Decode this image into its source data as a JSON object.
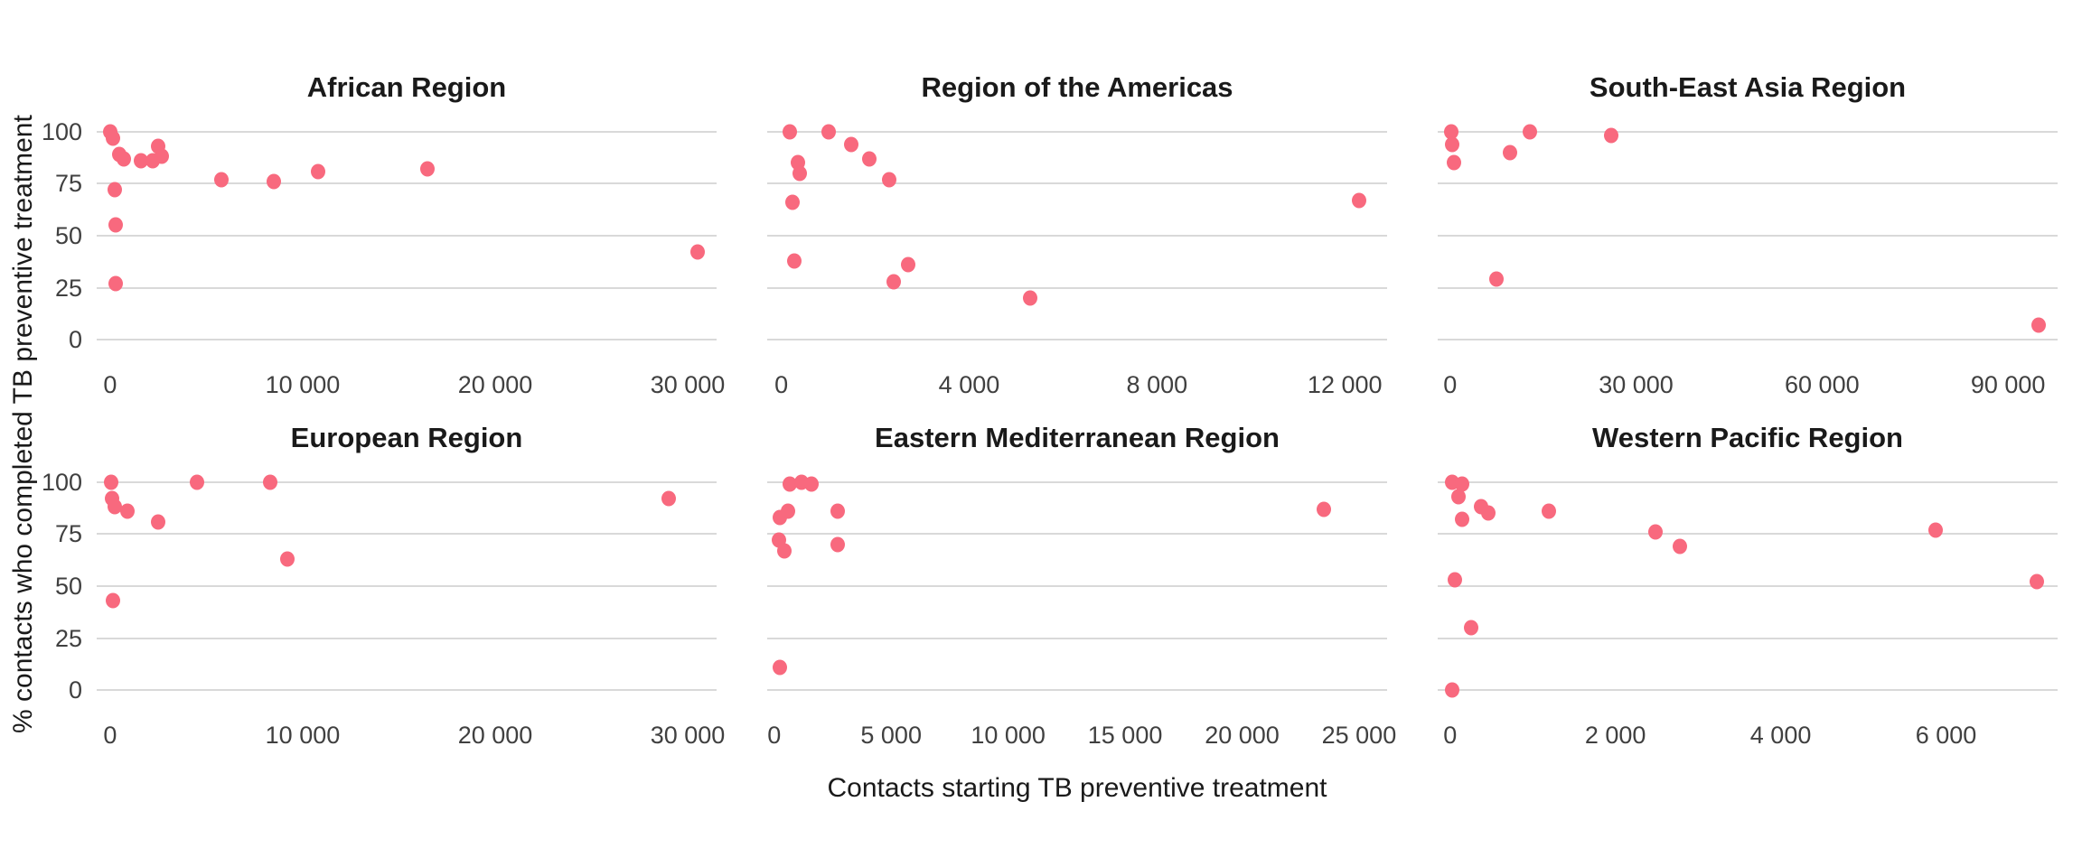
{
  "chart_data": {
    "type": "scatter",
    "title": "",
    "xlabel": "Contacts starting TB preventive treatment",
    "ylabel": "% contacts who completed TB preventive treatment",
    "point_color": "#f8697e",
    "gridline_color": "#d9d9d9",
    "grid": "horizontal-only",
    "legend_position": "none",
    "y_axis": {
      "tick_values": [
        100,
        75,
        50,
        25,
        0
      ],
      "tick_labels": [
        "100",
        "75",
        "50",
        "25",
        "0"
      ],
      "domain": [
        -9,
        109
      ]
    },
    "panels": [
      {
        "title": "African Region",
        "x_domain": [
          -700,
          31500
        ],
        "x_tick_values": [
          0,
          10000,
          20000,
          30000
        ],
        "x_tick_labels": [
          "0",
          "10 000",
          "20 000",
          "30 000"
        ],
        "points": [
          [
            0,
            100
          ],
          [
            150,
            97
          ],
          [
            450,
            89
          ],
          [
            700,
            87
          ],
          [
            1600,
            86
          ],
          [
            2200,
            86
          ],
          [
            2500,
            93
          ],
          [
            2700,
            88
          ],
          [
            250,
            72
          ],
          [
            300,
            55
          ],
          [
            300,
            27
          ],
          [
            5800,
            77
          ],
          [
            8500,
            76
          ],
          [
            10800,
            81
          ],
          [
            16500,
            82
          ],
          [
            30500,
            42
          ]
        ]
      },
      {
        "title": "Region of the Americas",
        "x_domain": [
          -300,
          12900
        ],
        "x_tick_values": [
          0,
          4000,
          8000,
          12000
        ],
        "x_tick_labels": [
          "0",
          "4 000",
          "8 000",
          "12 000"
        ],
        "points": [
          [
            180,
            100
          ],
          [
            1000,
            100
          ],
          [
            1480,
            94
          ],
          [
            1880,
            87
          ],
          [
            2300,
            77
          ],
          [
            350,
            85
          ],
          [
            400,
            80
          ],
          [
            240,
            66
          ],
          [
            280,
            38
          ],
          [
            2400,
            28
          ],
          [
            2700,
            36
          ],
          [
            5300,
            20
          ],
          [
            12300,
            67
          ]
        ]
      },
      {
        "title": "South-East Asia Region",
        "x_domain": [
          -2000,
          98000
        ],
        "x_tick_values": [
          0,
          30000,
          60000,
          90000
        ],
        "x_tick_labels": [
          "0",
          "30 000",
          "60 000",
          "90 000"
        ],
        "points": [
          [
            150,
            100
          ],
          [
            350,
            94
          ],
          [
            600,
            85
          ],
          [
            9700,
            90
          ],
          [
            12900,
            100
          ],
          [
            26000,
            98
          ],
          [
            7500,
            29
          ],
          [
            95000,
            7
          ]
        ]
      },
      {
        "title": "European Region",
        "x_domain": [
          -700,
          31500
        ],
        "x_tick_values": [
          0,
          10000,
          20000,
          30000
        ],
        "x_tick_labels": [
          "0",
          "10 000",
          "20 000",
          "30 000"
        ],
        "points": [
          [
            50,
            100
          ],
          [
            120,
            92
          ],
          [
            250,
            88
          ],
          [
            900,
            86
          ],
          [
            2500,
            81
          ],
          [
            4500,
            100
          ],
          [
            8300,
            100
          ],
          [
            9200,
            63
          ],
          [
            150,
            43
          ],
          [
            29000,
            92
          ]
        ]
      },
      {
        "title": "Eastern Mediterranean Region",
        "x_domain": [
          -300,
          26200
        ],
        "x_tick_values": [
          0,
          5000,
          10000,
          15000,
          20000,
          25000
        ],
        "x_tick_labels": [
          "0",
          "5 000",
          "10 000",
          "15 000",
          "20 000",
          "25 000"
        ],
        "points": [
          [
            680,
            99
          ],
          [
            1180,
            100
          ],
          [
            1600,
            99
          ],
          [
            250,
            83
          ],
          [
            590,
            86
          ],
          [
            220,
            72
          ],
          [
            420,
            67
          ],
          [
            2700,
            86
          ],
          [
            2700,
            70
          ],
          [
            250,
            11
          ],
          [
            23500,
            87
          ]
        ]
      },
      {
        "title": "Western Pacific Region",
        "x_domain": [
          -150,
          7350
        ],
        "x_tick_values": [
          0,
          2000,
          4000,
          6000
        ],
        "x_tick_labels": [
          "0",
          "2 000",
          "4 000",
          "6 000"
        ],
        "points": [
          [
            30,
            100
          ],
          [
            150,
            99
          ],
          [
            100,
            93
          ],
          [
            140,
            82
          ],
          [
            380,
            88
          ],
          [
            460,
            85
          ],
          [
            1200,
            86
          ],
          [
            2480,
            76
          ],
          [
            2780,
            69
          ],
          [
            5870,
            77
          ],
          [
            7100,
            52
          ],
          [
            60,
            53
          ],
          [
            250,
            30
          ],
          [
            30,
            0
          ]
        ]
      }
    ]
  }
}
